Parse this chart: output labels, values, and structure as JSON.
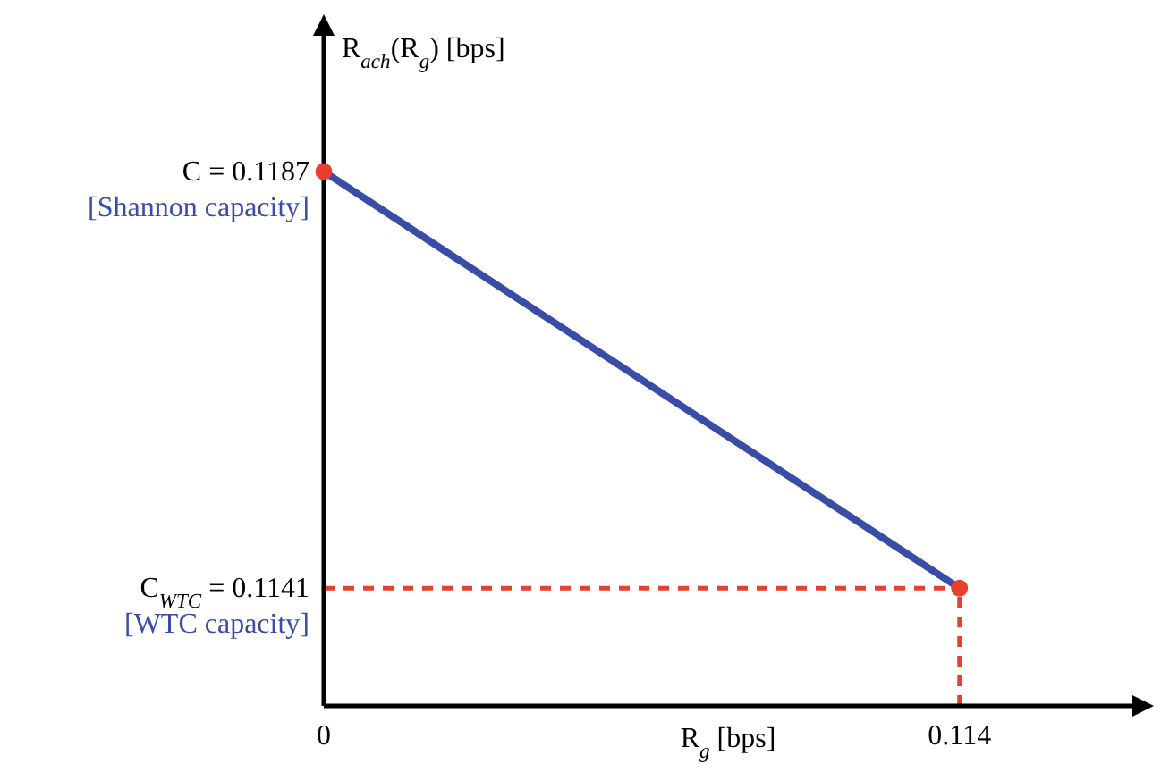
{
  "chart_data": {
    "type": "line",
    "xlabel": "R$_{g}$ [bps]",
    "ylabel": "R$_{ach}$(R$_{g}$) [bps]",
    "x": [
      0,
      0.114
    ],
    "series": [
      {
        "color": "#3a4da6",
        "values": [
          0.1187,
          0.1141
        ]
      },
      {
        "type": "scatter",
        "color": "#e8402e",
        "values": [
          0.1187,
          0.1141
        ],
        "marker": "circle"
      }
    ],
    "xlim": [
      0,
      0.145
    ],
    "ylim": [
      0.1128,
      0.1202
    ],
    "xticks": [
      0,
      0.114
    ],
    "yticks": [
      {
        "value": 0.1187,
        "label": "C = 0.1187"
      },
      {
        "value": 0.1141,
        "label": "C$_{WTC}$ = 0.1141"
      }
    ],
    "annotations": [
      {
        "text": "[Shannon capacity]",
        "x": 0,
        "y": 0.1187
      },
      {
        "text": "[WTC capacity]",
        "x": 0,
        "y": 0.1141
      }
    ],
    "ref_lines": [
      {
        "axis": "y",
        "value": 0.1141,
        "color": "#e8402e",
        "line_style": "dashed"
      },
      {
        "axis": "x",
        "value": 0.114,
        "color": "#e8402e",
        "line_style": "dashed"
      }
    ],
    "grid": false
  }
}
